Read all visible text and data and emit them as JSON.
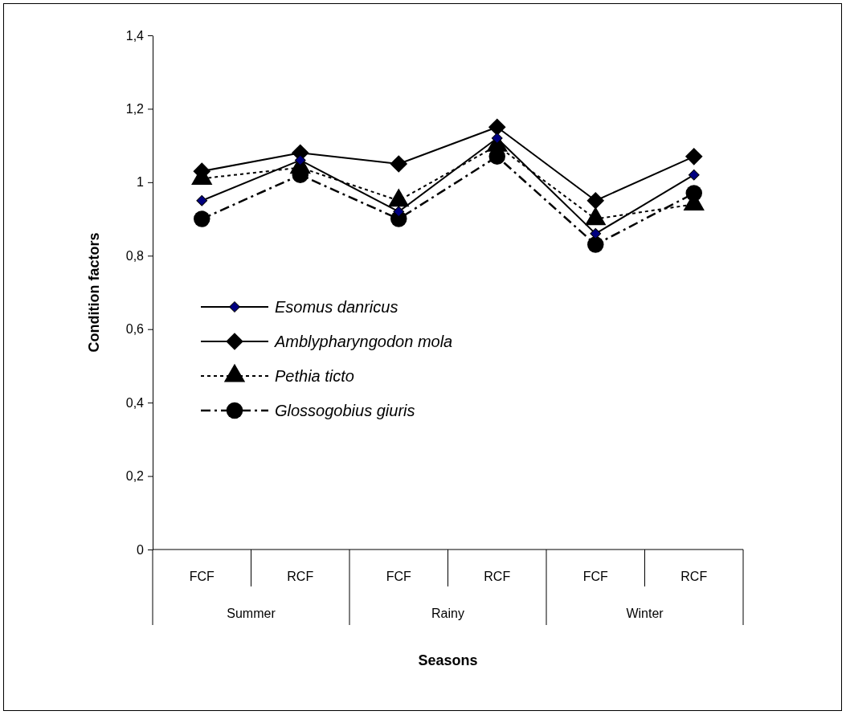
{
  "chart_data": {
    "type": "line",
    "xlabel": "Seasons",
    "ylabel": "Condition factors",
    "categories": [
      "FCF",
      "RCF",
      "FCF",
      "RCF",
      "FCF",
      "RCF"
    ],
    "annotations": [
      "Summer",
      "Rainy",
      "Winter"
    ],
    "ylim": [
      0,
      1.4
    ],
    "yticks": [
      {
        "value": 0,
        "label": "0"
      },
      {
        "value": 0.2,
        "label": "0,2"
      },
      {
        "value": 0.4,
        "label": "0,4"
      },
      {
        "value": 0.6,
        "label": "0,6"
      },
      {
        "value": 0.8,
        "label": "0,8"
      },
      {
        "value": 1,
        "label": "1"
      },
      {
        "value": 1.2,
        "label": "1,2"
      },
      {
        "value": 1.4,
        "label": "1,4"
      }
    ],
    "legend": "left",
    "grid": false,
    "series": [
      {
        "name": "Esomus danricus",
        "color": "#000080",
        "marker": "diamond",
        "line_style": "solid",
        "values": [
          0.95,
          1.06,
          0.92,
          1.12,
          0.86,
          1.02
        ]
      },
      {
        "name": "Amblypharyngodon mola",
        "color": "#000000",
        "marker": "diamond",
        "line_style": "solid",
        "values": [
          1.03,
          1.08,
          1.05,
          1.15,
          0.95,
          1.07
        ]
      },
      {
        "name": "Pethia ticto",
        "color": "#000000",
        "marker": "triangle",
        "line_style": "dotted",
        "values": [
          1.01,
          1.04,
          0.95,
          1.1,
          0.9,
          0.94
        ]
      },
      {
        "name": "Glossogobius giuris",
        "color": "#000000",
        "marker": "circle",
        "line_style": "dashed",
        "values": [
          0.9,
          1.02,
          0.9,
          1.07,
          0.83,
          0.97
        ]
      }
    ]
  }
}
